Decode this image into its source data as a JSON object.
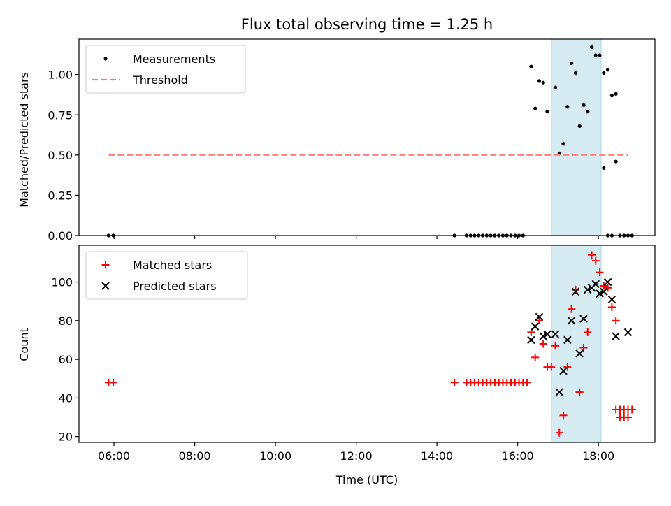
{
  "chart_data": [
    {
      "type": "scatter",
      "title": "Flux total observing time = 1.25 h",
      "xlabel": "",
      "ylabel": "Matched/Predicted stars",
      "xlim": [
        "05:08",
        "19:24"
      ],
      "ylim": [
        0,
        1.22
      ],
      "yticks": [
        "0.00",
        "0.25",
        "0.50",
        "0.75",
        "1.00"
      ],
      "ytick_values": [
        0,
        0.25,
        0.5,
        0.75,
        1.0
      ],
      "highlight_span": {
        "x_from": "16:50",
        "x_to": "18:04",
        "color": "#add8e6"
      },
      "legend_position": "upper left",
      "series": [
        {
          "name": "Measurements",
          "marker": "dot",
          "color": "#000000",
          "points": [
            {
              "x": "05:52",
              "y": 0.0
            },
            {
              "x": "05:59",
              "y": 0.0
            },
            {
              "x": "14:26",
              "y": 0.0
            },
            {
              "x": "14:44",
              "y": 0.0
            },
            {
              "x": "14:50",
              "y": 0.0
            },
            {
              "x": "14:56",
              "y": 0.0
            },
            {
              "x": "15:02",
              "y": 0.0
            },
            {
              "x": "15:08",
              "y": 0.0
            },
            {
              "x": "15:14",
              "y": 0.0
            },
            {
              "x": "15:20",
              "y": 0.0
            },
            {
              "x": "15:26",
              "y": 0.0
            },
            {
              "x": "15:32",
              "y": 0.0
            },
            {
              "x": "15:38",
              "y": 0.0
            },
            {
              "x": "15:44",
              "y": 0.0
            },
            {
              "x": "15:50",
              "y": 0.0
            },
            {
              "x": "15:56",
              "y": 0.0
            },
            {
              "x": "16:02",
              "y": 0.0
            },
            {
              "x": "16:08",
              "y": 0.0
            },
            {
              "x": "16:20",
              "y": 1.05
            },
            {
              "x": "16:26",
              "y": 0.79
            },
            {
              "x": "16:32",
              "y": 0.96
            },
            {
              "x": "16:38",
              "y": 0.95
            },
            {
              "x": "16:44",
              "y": 0.77
            },
            {
              "x": "16:56",
              "y": 0.92
            },
            {
              "x": "17:02",
              "y": 0.51
            },
            {
              "x": "17:08",
              "y": 0.57
            },
            {
              "x": "17:14",
              "y": 0.8
            },
            {
              "x": "17:20",
              "y": 1.07
            },
            {
              "x": "17:26",
              "y": 1.01
            },
            {
              "x": "17:32",
              "y": 0.68
            },
            {
              "x": "17:38",
              "y": 0.81
            },
            {
              "x": "17:44",
              "y": 0.77
            },
            {
              "x": "17:50",
              "y": 1.17
            },
            {
              "x": "17:56",
              "y": 1.12
            },
            {
              "x": "18:02",
              "y": 1.12
            },
            {
              "x": "18:08",
              "y": 1.01
            },
            {
              "x": "18:14",
              "y": 1.03
            },
            {
              "x": "18:20",
              "y": 0.87
            },
            {
              "x": "18:26",
              "y": 0.88
            },
            {
              "x": "18:08",
              "y": 0.42
            },
            {
              "x": "18:26",
              "y": 0.46
            },
            {
              "x": "18:14",
              "y": 0.0
            },
            {
              "x": "18:20",
              "y": 0.0
            },
            {
              "x": "18:32",
              "y": 0.0
            },
            {
              "x": "18:38",
              "y": 0.0
            },
            {
              "x": "18:44",
              "y": 0.0
            },
            {
              "x": "18:50",
              "y": 0.0
            }
          ]
        },
        {
          "name": "Threshold",
          "style": "dashed",
          "color": "#ff7f7f",
          "points": [
            {
              "x": "05:52",
              "y": 0.5
            },
            {
              "x": "18:44",
              "y": 0.5
            }
          ]
        }
      ]
    },
    {
      "type": "scatter",
      "title": "",
      "xlabel": "Time (UTC)",
      "ylabel": "Count",
      "xlim": [
        "05:08",
        "19:24"
      ],
      "ylim": [
        17,
        119
      ],
      "xticks": [
        "06:00",
        "08:00",
        "10:00",
        "12:00",
        "14:00",
        "16:00",
        "18:00"
      ],
      "yticks": [
        "20",
        "40",
        "60",
        "80",
        "100"
      ],
      "ytick_values": [
        20,
        40,
        60,
        80,
        100
      ],
      "highlight_span": {
        "x_from": "16:50",
        "x_to": "18:04",
        "color": "#add8e6"
      },
      "legend_position": "upper left",
      "series": [
        {
          "name": "Matched stars",
          "marker": "plus",
          "color": "#ff0000",
          "points": [
            {
              "x": "05:52",
              "y": 48
            },
            {
              "x": "05:59",
              "y": 48
            },
            {
              "x": "14:26",
              "y": 48
            },
            {
              "x": "14:44",
              "y": 48
            },
            {
              "x": "14:50",
              "y": 48
            },
            {
              "x": "14:56",
              "y": 48
            },
            {
              "x": "15:02",
              "y": 48
            },
            {
              "x": "15:08",
              "y": 48
            },
            {
              "x": "15:14",
              "y": 48
            },
            {
              "x": "15:20",
              "y": 48
            },
            {
              "x": "15:26",
              "y": 48
            },
            {
              "x": "15:32",
              "y": 48
            },
            {
              "x": "15:38",
              "y": 48
            },
            {
              "x": "15:44",
              "y": 48
            },
            {
              "x": "15:50",
              "y": 48
            },
            {
              "x": "15:56",
              "y": 48
            },
            {
              "x": "16:02",
              "y": 48
            },
            {
              "x": "16:08",
              "y": 48
            },
            {
              "x": "16:14",
              "y": 48
            },
            {
              "x": "16:20",
              "y": 74
            },
            {
              "x": "16:26",
              "y": 61
            },
            {
              "x": "16:32",
              "y": 80
            },
            {
              "x": "16:38",
              "y": 68
            },
            {
              "x": "16:44",
              "y": 56
            },
            {
              "x": "16:50",
              "y": 56
            },
            {
              "x": "16:56",
              "y": 67
            },
            {
              "x": "17:02",
              "y": 22
            },
            {
              "x": "17:08",
              "y": 31
            },
            {
              "x": "17:14",
              "y": 56
            },
            {
              "x": "17:20",
              "y": 86
            },
            {
              "x": "17:26",
              "y": 96
            },
            {
              "x": "17:32",
              "y": 43
            },
            {
              "x": "17:38",
              "y": 66
            },
            {
              "x": "17:44",
              "y": 74
            },
            {
              "x": "17:50",
              "y": 114
            },
            {
              "x": "17:56",
              "y": 111
            },
            {
              "x": "18:02",
              "y": 105
            },
            {
              "x": "18:08",
              "y": 98
            },
            {
              "x": "18:14",
              "y": 97
            },
            {
              "x": "18:20",
              "y": 87
            },
            {
              "x": "18:26",
              "y": 80
            },
            {
              "x": "18:32",
              "y": 30
            },
            {
              "x": "18:38",
              "y": 30
            },
            {
              "x": "18:44",
              "y": 30
            },
            {
              "x": "18:26",
              "y": 34
            },
            {
              "x": "18:32",
              "y": 34
            },
            {
              "x": "18:38",
              "y": 34
            },
            {
              "x": "18:44",
              "y": 34
            },
            {
              "x": "18:50",
              "y": 34
            }
          ]
        },
        {
          "name": "Predicted stars",
          "marker": "x",
          "color": "#000000",
          "points": [
            {
              "x": "16:20",
              "y": 70
            },
            {
              "x": "16:26",
              "y": 77
            },
            {
              "x": "16:32",
              "y": 82
            },
            {
              "x": "16:38",
              "y": 72
            },
            {
              "x": "16:44",
              "y": 73
            },
            {
              "x": "16:56",
              "y": 73
            },
            {
              "x": "17:02",
              "y": 43
            },
            {
              "x": "17:08",
              "y": 54
            },
            {
              "x": "17:14",
              "y": 70
            },
            {
              "x": "17:20",
              "y": 80
            },
            {
              "x": "17:26",
              "y": 95
            },
            {
              "x": "17:32",
              "y": 63
            },
            {
              "x": "17:38",
              "y": 81
            },
            {
              "x": "17:44",
              "y": 96
            },
            {
              "x": "17:50",
              "y": 97
            },
            {
              "x": "17:56",
              "y": 99
            },
            {
              "x": "18:02",
              "y": 94
            },
            {
              "x": "18:08",
              "y": 95
            },
            {
              "x": "18:14",
              "y": 100
            },
            {
              "x": "18:20",
              "y": 91
            },
            {
              "x": "18:26",
              "y": 72
            },
            {
              "x": "18:44",
              "y": 74
            }
          ]
        }
      ]
    }
  ]
}
